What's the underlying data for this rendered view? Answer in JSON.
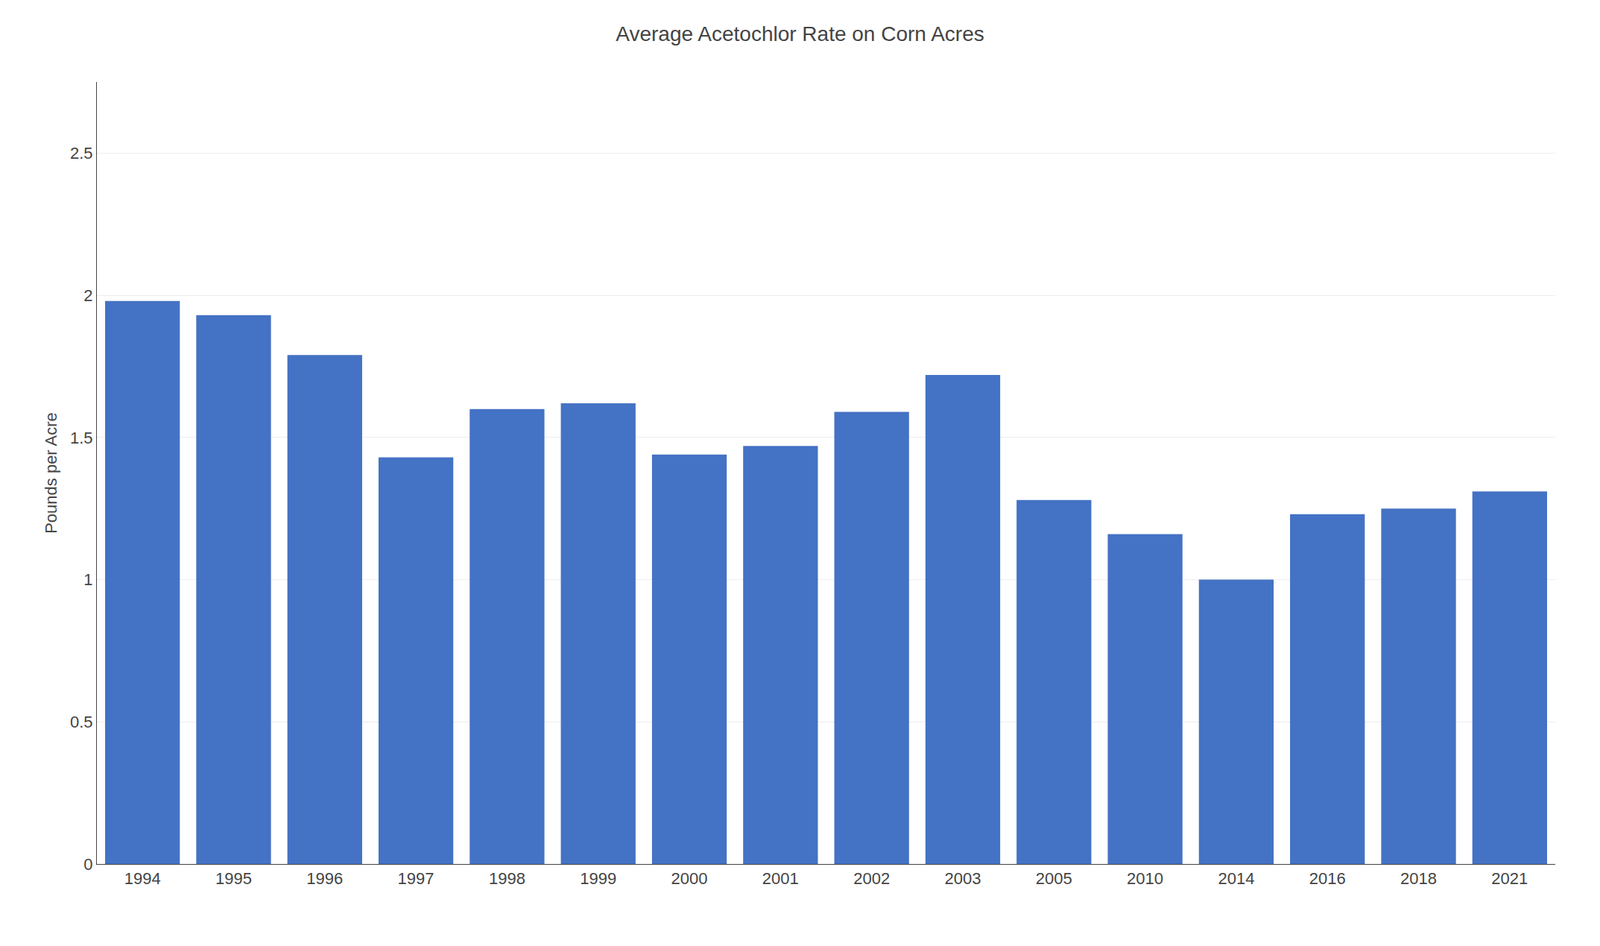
{
  "chart_data": {
    "type": "bar",
    "title": "Average Acetochlor Rate on Corn Acres",
    "ylabel": "Pounds per Acre",
    "categories": [
      "1994",
      "1995",
      "1996",
      "1997",
      "1998",
      "1999",
      "2000",
      "2001",
      "2002",
      "2003",
      "2005",
      "2010",
      "2014",
      "2016",
      "2018",
      "2021"
    ],
    "values": [
      1.98,
      1.93,
      1.79,
      1.43,
      1.6,
      1.62,
      1.44,
      1.47,
      1.59,
      1.72,
      1.28,
      1.16,
      1.0,
      1.23,
      1.25,
      1.31
    ],
    "color": "#4472C4",
    "ylim": [
      0,
      2.75
    ],
    "yticks": [
      0,
      0.5,
      1,
      1.5,
      2,
      2.5
    ],
    "grid": true
  }
}
